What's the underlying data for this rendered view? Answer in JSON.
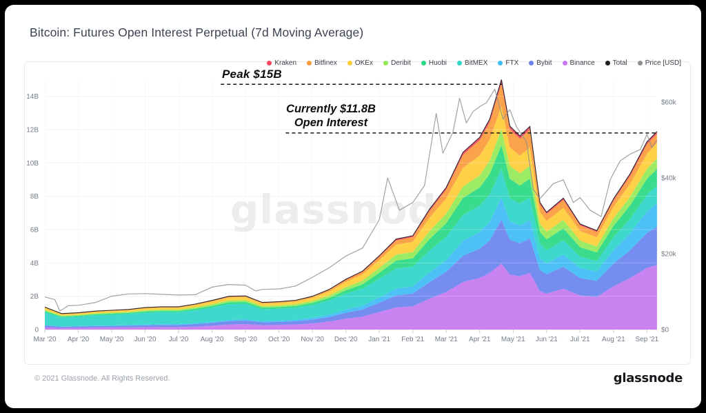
{
  "header": {
    "title": "Bitcoin: Futures Open Interest Perpetual (7d Moving Average)"
  },
  "watermark": "glassnode",
  "footer": {
    "copyright": "© 2021 Glassnode. All Rights Reserved.",
    "brand": "glassnode"
  },
  "legend": [
    {
      "label": "Kraken",
      "color": "#f4475f"
    },
    {
      "label": "Bitfinex",
      "color": "#fb9c3c"
    },
    {
      "label": "OKEx",
      "color": "#ffce38"
    },
    {
      "label": "Deribit",
      "color": "#93e958"
    },
    {
      "label": "Huobi",
      "color": "#2ad983"
    },
    {
      "label": "BitMEX",
      "color": "#30d5c8"
    },
    {
      "label": "FTX",
      "color": "#3fbcf5"
    },
    {
      "label": "Bybit",
      "color": "#6b84ee"
    },
    {
      "label": "Binance",
      "color": "#c678f0"
    },
    {
      "label": "Total",
      "color": "#1b1b20"
    },
    {
      "label": "Price [USD]",
      "color": "#8e8e93"
    }
  ],
  "chart_data": {
    "type": "area",
    "stacked": true,
    "title": "Bitcoin: Futures Open Interest Perpetual (7d Moving Average)",
    "x_axis": {
      "unit": "months since 2020-03-01",
      "ticks": [
        {
          "m": 0,
          "label": "Mar '20"
        },
        {
          "m": 1,
          "label": "Apr '20"
        },
        {
          "m": 2,
          "label": "May '20"
        },
        {
          "m": 3,
          "label": "Jun '20"
        },
        {
          "m": 4,
          "label": "Jul '20"
        },
        {
          "m": 5,
          "label": "Aug '20"
        },
        {
          "m": 6,
          "label": "Sep '20"
        },
        {
          "m": 7,
          "label": "Oct '20"
        },
        {
          "m": 8,
          "label": "Nov '20"
        },
        {
          "m": 9,
          "label": "Dec '20"
        },
        {
          "m": 10,
          "label": "Jan '21"
        },
        {
          "m": 11,
          "label": "Feb '21"
        },
        {
          "m": 12,
          "label": "Mar '21"
        },
        {
          "m": 13,
          "label": "Apr '21"
        },
        {
          "m": 14,
          "label": "May '21"
        },
        {
          "m": 15,
          "label": "Jun '21"
        },
        {
          "m": 16,
          "label": "Jul '21"
        },
        {
          "m": 17,
          "label": "Aug '21"
        },
        {
          "m": 18,
          "label": "Sep '21"
        }
      ]
    },
    "y_axis_left": {
      "title": "Open Interest (USD billions)",
      "range_billions": [
        0,
        15.1
      ],
      "ticks": [
        {
          "v": 0,
          "label": "0"
        },
        {
          "v": 2,
          "label": "2B"
        },
        {
          "v": 4,
          "label": "4B"
        },
        {
          "v": 6,
          "label": "6B"
        },
        {
          "v": 8,
          "label": "8B"
        },
        {
          "v": 10,
          "label": "10B"
        },
        {
          "v": 12,
          "label": "12B"
        },
        {
          "v": 14,
          "label": "14B"
        }
      ]
    },
    "y_axis_right": {
      "title": "Price [USD]",
      "range_usd_k": [
        0,
        66
      ],
      "ticks": [
        {
          "v": 0,
          "label": "$0"
        },
        {
          "v": 20,
          "label": "$20k"
        },
        {
          "v": 40,
          "label": "$40k"
        },
        {
          "v": 60,
          "label": "$60k"
        }
      ]
    },
    "x_months": [
      0,
      0.5,
      1,
      1.5,
      2,
      2.5,
      3,
      3.5,
      4,
      4.5,
      5,
      5.5,
      6,
      6.5,
      7,
      7.5,
      8,
      8.5,
      9,
      9.5,
      10,
      10.5,
      11,
      11.5,
      12,
      12.5,
      13,
      13.3,
      13.65,
      13.9,
      14.2,
      14.5,
      14.8,
      15,
      15.5,
      16,
      16.5,
      17,
      17.5,
      18,
      18.3
    ],
    "series": [
      {
        "name": "Binance",
        "color": "#c678f0",
        "values": [
          0.13,
          0.09,
          0.1,
          0.11,
          0.12,
          0.13,
          0.14,
          0.15,
          0.15,
          0.18,
          0.23,
          0.3,
          0.33,
          0.27,
          0.28,
          0.31,
          0.37,
          0.48,
          0.65,
          0.78,
          1.05,
          1.33,
          1.4,
          1.85,
          2.25,
          2.85,
          3.1,
          3.4,
          3.95,
          3.3,
          3.2,
          3.4,
          2.3,
          2.15,
          2.45,
          2.05,
          1.95,
          2.6,
          3.1,
          3.7,
          3.88
        ]
      },
      {
        "name": "Bybit",
        "color": "#6b84ee",
        "values": [
          0.12,
          0.08,
          0.09,
          0.1,
          0.1,
          0.11,
          0.12,
          0.13,
          0.13,
          0.15,
          0.17,
          0.2,
          0.21,
          0.17,
          0.18,
          0.19,
          0.22,
          0.27,
          0.36,
          0.43,
          0.57,
          0.72,
          0.76,
          1.0,
          1.22,
          1.58,
          1.75,
          1.95,
          2.65,
          2.1,
          1.98,
          2.07,
          1.28,
          1.17,
          1.32,
          1.04,
          0.97,
          1.36,
          1.67,
          2.1,
          2.28
        ]
      },
      {
        "name": "FTX",
        "color": "#3fbcf5",
        "values": [
          0.02,
          0.015,
          0.02,
          0.02,
          0.03,
          0.03,
          0.04,
          0.04,
          0.05,
          0.06,
          0.07,
          0.08,
          0.08,
          0.07,
          0.08,
          0.09,
          0.11,
          0.14,
          0.19,
          0.23,
          0.31,
          0.4,
          0.43,
          0.58,
          0.7,
          0.9,
          1.0,
          1.12,
          1.32,
          1.1,
          1.06,
          1.11,
          0.7,
          0.65,
          0.74,
          0.6,
          0.57,
          0.82,
          1.02,
          1.3,
          1.42
        ]
      },
      {
        "name": "BitMEX",
        "color": "#30d5c8",
        "values": [
          0.76,
          0.54,
          0.56,
          0.62,
          0.64,
          0.66,
          0.71,
          0.73,
          0.71,
          0.77,
          0.85,
          0.94,
          0.92,
          0.71,
          0.71,
          0.72,
          0.77,
          0.85,
          0.95,
          1.02,
          1.12,
          1.22,
          1.18,
          1.32,
          1.4,
          1.55,
          1.58,
          1.65,
          1.72,
          1.4,
          1.32,
          1.36,
          0.88,
          0.8,
          0.86,
          0.68,
          0.62,
          0.76,
          0.87,
          1.0,
          1.05
        ]
      },
      {
        "name": "Huobi",
        "color": "#2ad983",
        "values": [
          0.08,
          0.06,
          0.06,
          0.07,
          0.07,
          0.07,
          0.08,
          0.08,
          0.08,
          0.09,
          0.1,
          0.12,
          0.12,
          0.1,
          0.1,
          0.11,
          0.13,
          0.16,
          0.21,
          0.26,
          0.36,
          0.47,
          0.5,
          0.68,
          0.82,
          1.02,
          1.1,
          1.22,
          1.42,
          1.15,
          1.08,
          1.12,
          0.7,
          0.64,
          0.71,
          0.57,
          0.52,
          0.68,
          0.8,
          0.95,
          1.0
        ]
      },
      {
        "name": "Deribit",
        "color": "#93e958",
        "values": [
          0.07,
          0.05,
          0.05,
          0.05,
          0.06,
          0.06,
          0.07,
          0.07,
          0.08,
          0.09,
          0.1,
          0.11,
          0.11,
          0.09,
          0.1,
          0.1,
          0.12,
          0.15,
          0.19,
          0.22,
          0.29,
          0.36,
          0.38,
          0.48,
          0.56,
          0.68,
          0.73,
          0.8,
          0.98,
          0.78,
          0.74,
          0.77,
          0.5,
          0.46,
          0.5,
          0.4,
          0.37,
          0.46,
          0.52,
          0.6,
          0.64
        ]
      },
      {
        "name": "OKEx",
        "color": "#ffce38",
        "values": [
          0.13,
          0.09,
          0.09,
          0.1,
          0.1,
          0.11,
          0.12,
          0.12,
          0.12,
          0.14,
          0.16,
          0.18,
          0.18,
          0.15,
          0.15,
          0.16,
          0.19,
          0.24,
          0.31,
          0.37,
          0.47,
          0.59,
          0.62,
          0.8,
          0.93,
          1.12,
          1.18,
          1.28,
          1.38,
          1.1,
          1.05,
          1.1,
          0.7,
          0.65,
          0.72,
          0.58,
          0.54,
          0.68,
          0.78,
          0.9,
          0.95
        ]
      },
      {
        "name": "Bitfinex",
        "color": "#fb9c3c",
        "values": [
          0.03,
          0.025,
          0.03,
          0.03,
          0.03,
          0.03,
          0.03,
          0.04,
          0.04,
          0.04,
          0.05,
          0.05,
          0.05,
          0.05,
          0.05,
          0.06,
          0.07,
          0.09,
          0.12,
          0.15,
          0.2,
          0.26,
          0.28,
          0.4,
          0.52,
          0.78,
          0.93,
          1.03,
          1.35,
          1.1,
          1.02,
          1.08,
          0.46,
          0.42,
          0.48,
          0.33,
          0.32,
          0.38,
          0.48,
          0.58,
          0.52
        ]
      },
      {
        "name": "Kraken",
        "color": "#f4475f",
        "values": [
          0.01,
          0.01,
          0.01,
          0.01,
          0.01,
          0.01,
          0.01,
          0.01,
          0.01,
          0.01,
          0.02,
          0.02,
          0.02,
          0.02,
          0.02,
          0.02,
          0.02,
          0.03,
          0.04,
          0.05,
          0.06,
          0.08,
          0.08,
          0.11,
          0.13,
          0.16,
          0.17,
          0.18,
          0.23,
          0.18,
          0.17,
          0.18,
          0.11,
          0.1,
          0.11,
          0.09,
          0.08,
          0.1,
          0.12,
          0.14,
          0.15
        ]
      }
    ],
    "total_line": {
      "name": "Total",
      "color": "#2b262b"
    },
    "price_line": {
      "name": "Price [USD]",
      "color": "#909090",
      "x_months": [
        0,
        0.3,
        0.45,
        0.7,
        1,
        1.5,
        2,
        2.5,
        3,
        3.5,
        4,
        4.5,
        5,
        5.5,
        6,
        6.3,
        6.5,
        7,
        7.5,
        8,
        8.5,
        9,
        9.5,
        10,
        10.25,
        10.6,
        11,
        11.35,
        11.7,
        11.9,
        12.2,
        12.4,
        12.6,
        12.8,
        13,
        13.2,
        13.45,
        13.7,
        13.9,
        14.1,
        14.4,
        14.6,
        14.8,
        15,
        15.2,
        15.5,
        15.8,
        16,
        16.3,
        16.63,
        16.9,
        17.2,
        17.5,
        17.8,
        18,
        18.15,
        18.3
      ],
      "values_usd_k": [
        8.6,
        7.9,
        4.9,
        6.3,
        6.4,
        7.1,
        8.8,
        9.4,
        9.5,
        9.3,
        9.1,
        9.2,
        11.2,
        11.9,
        11.7,
        10.2,
        10.6,
        10.7,
        11.5,
        13.8,
        16.3,
        19.4,
        21.5,
        29.0,
        40.0,
        31.5,
        33.5,
        38.0,
        57.0,
        46.5,
        52.0,
        61.0,
        54.5,
        57.5,
        58.8,
        59.8,
        63.4,
        55.5,
        58.0,
        53.5,
        49.5,
        37.0,
        34.5,
        36.5,
        38.5,
        39.5,
        33.5,
        34.8,
        31.5,
        29.8,
        39.5,
        44.5,
        46.3,
        47.5,
        51.5,
        48.0,
        50.0
      ]
    },
    "annotations": {
      "peak_line": {
        "label": "Peak $15B",
        "value_billions": 15,
        "y_billions": 14.72,
        "x_from_month": 5.26,
        "x_to_month": 13.67
      },
      "current_line": {
        "label_line1": "Currently $11.8B",
        "label_line2": "Open Interest",
        "value_billions": 11.8,
        "y_billions": 11.8,
        "x_from_month": 7.2,
        "x_to_month": 18.3
      }
    }
  }
}
